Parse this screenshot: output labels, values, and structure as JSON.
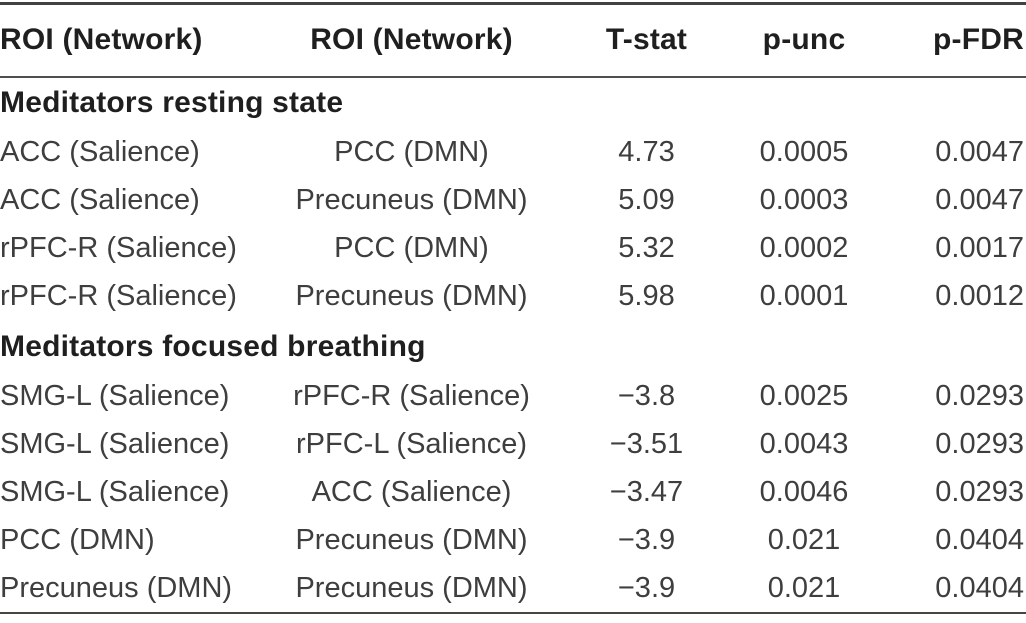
{
  "table": {
    "columns": [
      "ROI (Network)",
      "ROI (Network)",
      "T-stat",
      "p-unc",
      "p-FDR"
    ],
    "sections": [
      {
        "title": "Meditators resting state",
        "rows": [
          [
            "ACC (Salience)",
            "PCC (DMN)",
            "4.73",
            "0.0005",
            "0.0047"
          ],
          [
            "ACC (Salience)",
            "Precuneus (DMN)",
            "5.09",
            "0.0003",
            "0.0047"
          ],
          [
            "rPFC-R (Salience)",
            "PCC (DMN)",
            "5.32",
            "0.0002",
            "0.0017"
          ],
          [
            "rPFC-R (Salience)",
            "Precuneus (DMN)",
            "5.98",
            "0.0001",
            "0.0012"
          ]
        ]
      },
      {
        "title": "Meditators focused breathing",
        "rows": [
          [
            "SMG-L (Salience)",
            "rPFC-R (Salience)",
            "−3.8",
            "0.0025",
            "0.0293"
          ],
          [
            "SMG-L (Salience)",
            "rPFC-L (Salience)",
            "−3.51",
            "0.0043",
            "0.0293"
          ],
          [
            "SMG-L (Salience)",
            "ACC (Salience)",
            "−3.47",
            "0.0046",
            "0.0293"
          ],
          [
            "PCC (DMN)",
            "Precuneus (DMN)",
            "−3.9",
            "0.021",
            "0.0404"
          ],
          [
            "Precuneus (DMN)",
            "Precuneus (DMN)",
            "−3.9",
            "0.021",
            "0.0404"
          ]
        ]
      }
    ],
    "rule_colors": {
      "top_rule": "#414141",
      "header_rule": "#4f4f4f",
      "bottom_rule": "#454545"
    },
    "text_colors": {
      "header": "#1f1f1f",
      "data": "#3e3e3e"
    }
  }
}
